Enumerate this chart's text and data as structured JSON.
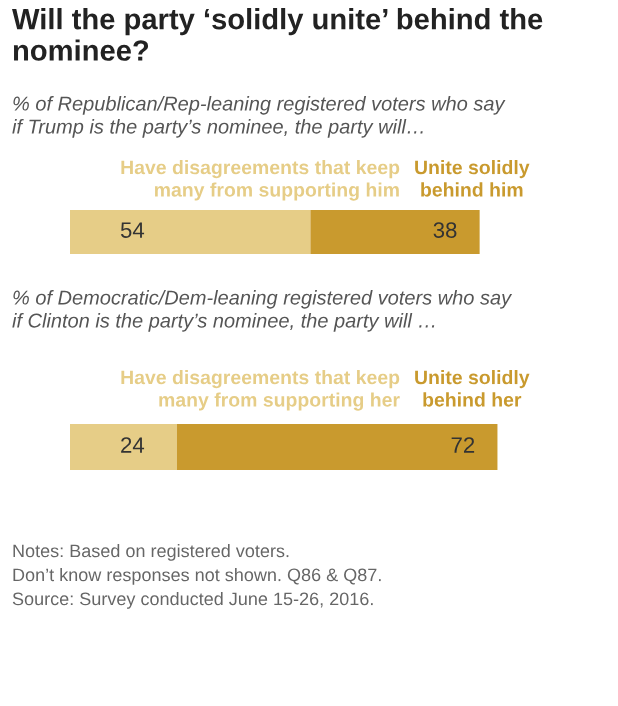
{
  "chart_data": [
    {
      "type": "bar",
      "orientation": "horizontal",
      "stacked": true,
      "title": "Will the party ‘solidly unite’ behind the\nnominee?",
      "subtitle": "% of Republican/Rep-leaning registered voters who say\nif Trump is the party’s nominee, the party will…",
      "categories": [
        null
      ],
      "data_labels": true,
      "series": [
        {
          "name": "Have disagreements that keep\nmany from supporting him",
          "color": "#e6cd87",
          "values": [
            54
          ]
        },
        {
          "name": "Unite solidly\nbehind him",
          "color": "#c99a2e",
          "values": [
            38
          ]
        }
      ]
    },
    {
      "type": "bar",
      "orientation": "horizontal",
      "stacked": true,
      "subtitle": "% of Democratic/Dem-leaning registered voters who say\nif Clinton is the party’s nominee, the party will …",
      "categories": [
        null
      ],
      "data_labels": true,
      "annotations": [
        "Notes: Based on registered voters.",
        "Don’t know responses not shown. Q86 & Q87.",
        "Source: Survey conducted June 15-26, 2016."
      ],
      "series": [
        {
          "name": "Have disagreements that keep\nmany from supporting her",
          "color": "#e6cd87",
          "values": [
            24
          ]
        },
        {
          "name": "Unite solidly\nbehind her",
          "color": "#c99a2e",
          "values": [
            72
          ]
        }
      ]
    }
  ]
}
